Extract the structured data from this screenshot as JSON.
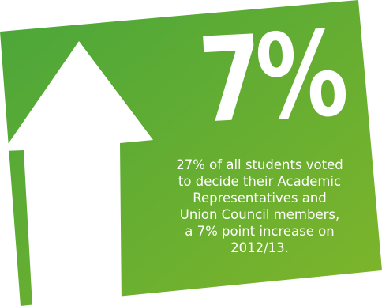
{
  "infographic": {
    "headline_stat": "7%",
    "description": "27% of all students voted\nto decide their Academic\nRepresentatives and\nUnion Council members,\na 7% point increase on\n2012/13.",
    "colors": {
      "background": "#ffffff",
      "panel_gradient_start": "#4aa63a",
      "panel_gradient_end": "#7fb52a",
      "text": "#ffffff",
      "arrow": "#ffffff"
    },
    "icons": {
      "arrow": "up-arrow-icon"
    }
  }
}
